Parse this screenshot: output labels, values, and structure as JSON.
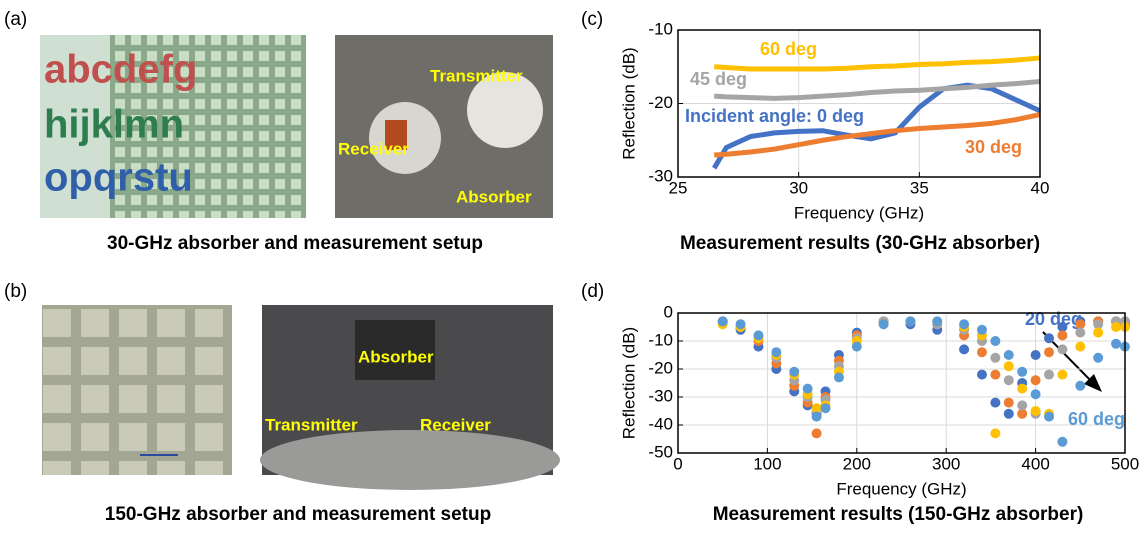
{
  "panels": {
    "a": "(a)",
    "b": "(b)",
    "c": "(c)",
    "d": "(d)"
  },
  "photos": {
    "a_left": {
      "letters": [
        "abcdefg",
        "hijklmn",
        "opqrstu"
      ]
    },
    "a_right": {
      "labels": [
        "Transmitter",
        "Receiver",
        "Absorber"
      ]
    },
    "b_right": {
      "labels": [
        "Absorber",
        "Transmitter",
        "Receiver"
      ]
    }
  },
  "captions": [
    "30-GHz absorber and measurement setup",
    "150-GHz absorber and measurement setup"
  ],
  "chart_data": [
    {
      "type": "line",
      "title": "Measurement results (30-GHz absorber)",
      "xlabel": "Frequency (GHz)",
      "ylabel": "Reflection (dB)",
      "xlim": [
        25,
        40
      ],
      "xticks": [
        25,
        30,
        35,
        40
      ],
      "ylim": [
        -30,
        -10
      ],
      "yticks": [
        -30,
        -20,
        -10
      ],
      "grid": true,
      "x": [
        26.5,
        27,
        28,
        29,
        30,
        31,
        32,
        33,
        34,
        35,
        36,
        37,
        38,
        39,
        40
      ],
      "series": [
        {
          "name": "Incident angle: 0 deg",
          "color": "#4472c4",
          "values": [
            -28.8,
            -26,
            -24.5,
            -24,
            -23.8,
            -23.7,
            -24.3,
            -24.8,
            -24,
            -20.5,
            -18,
            -17.5,
            -18,
            -19.5,
            -21
          ]
        },
        {
          "name": "30 deg",
          "color": "#ed7d31",
          "values": [
            -27,
            -26.9,
            -26.6,
            -26.2,
            -25.6,
            -25,
            -24.5,
            -24.1,
            -23.7,
            -23.4,
            -23.2,
            -23,
            -22.7,
            -22.2,
            -21.5
          ]
        },
        {
          "name": "45 deg",
          "color": "#a5a5a5",
          "values": [
            -19,
            -19.1,
            -19.2,
            -19.3,
            -19.2,
            -19,
            -18.8,
            -18.5,
            -18.3,
            -18.2,
            -18,
            -17.8,
            -17.5,
            -17.3,
            -17
          ]
        },
        {
          "name": "60 deg",
          "color": "#ffc000",
          "values": [
            -15,
            -15.1,
            -15.3,
            -15.3,
            -15.3,
            -15.3,
            -15.2,
            -15,
            -14.9,
            -14.7,
            -14.6,
            -14.4,
            -14.3,
            -14.1,
            -13.8
          ]
        }
      ]
    },
    {
      "type": "scatter",
      "title": "Measurement results (150-GHz absorber)",
      "xlabel": "Frequency (GHz)",
      "ylabel": "Reflection (dB)",
      "xlim": [
        0,
        500
      ],
      "xticks": [
        0,
        100,
        200,
        300,
        400,
        500
      ],
      "ylim": [
        -50,
        0
      ],
      "yticks": [
        -50,
        -40,
        -30,
        -20,
        -10,
        0
      ],
      "grid": true,
      "x": [
        50,
        70,
        90,
        110,
        130,
        145,
        155,
        165,
        180,
        200,
        230,
        260,
        290,
        320,
        340,
        355,
        370,
        385,
        400,
        415,
        430,
        450,
        470,
        490,
        500
      ],
      "series": [
        {
          "name": "20 deg",
          "color": "#4472c4",
          "values": [
            -3,
            -6,
            -12,
            -20,
            -28,
            -33,
            -36,
            -28,
            -15,
            -7,
            -3,
            -4,
            -6,
            -13,
            -22,
            -32,
            -36,
            -25,
            -15,
            -9,
            -5,
            -3,
            -3,
            -3,
            -4
          ]
        },
        {
          "color": "#ed7d31",
          "values": [
            -3,
            -5,
            -10,
            -18,
            -26,
            -32,
            -43,
            -30,
            -17,
            -8,
            -3,
            -3,
            -4,
            -8,
            -14,
            -22,
            -32,
            -36,
            -24,
            -14,
            -8,
            -4,
            -3,
            -3,
            -3
          ]
        },
        {
          "color": "#a5a5a5",
          "values": [
            -3,
            -5,
            -9,
            -16,
            -24,
            -30,
            -35,
            -31,
            -19,
            -9,
            -3,
            -3,
            -4,
            -6,
            -10,
            -16,
            -24,
            -33,
            -36,
            -22,
            -13,
            -7,
            -4,
            -3,
            -3
          ]
        },
        {
          "color": "#ffc000",
          "values": [
            -4,
            -5,
            -9,
            -15,
            -22,
            -29,
            -34,
            -33,
            -21,
            -10,
            -4,
            -3,
            -3,
            -5,
            -8,
            -43,
            -19,
            -27,
            -35,
            -36,
            -22,
            -12,
            -7,
            -5,
            -5
          ]
        },
        {
          "name": "60 deg",
          "color": "#5b9bd5",
          "values": [
            -3,
            -4,
            -8,
            -14,
            -21,
            -27,
            -37,
            -34,
            -23,
            -12,
            -4,
            -3,
            -3,
            -4,
            -6,
            -10,
            -15,
            -21,
            -29,
            -37,
            -46,
            -26,
            -16,
            -11,
            -12
          ]
        }
      ]
    }
  ]
}
